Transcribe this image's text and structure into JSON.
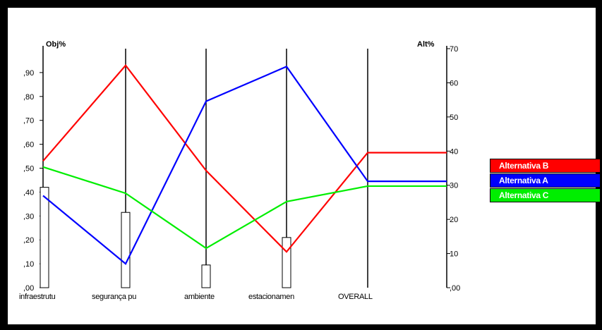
{
  "chart_data": {
    "type": "line",
    "title": "",
    "left_axis": {
      "label": "Obj%",
      "range": [
        0,
        1
      ],
      "ticks": [
        ",00",
        ",10",
        ",20",
        ",30",
        ",40",
        ",50",
        ",60",
        ",70",
        ",80",
        ",90"
      ]
    },
    "right_axis": {
      "label": "Alt%",
      "range": [
        0,
        70
      ],
      "ticks": [
        ",00",
        "10",
        "20",
        "30",
        "40",
        "50",
        "60",
        "70"
      ]
    },
    "categories": [
      "infraestrutu",
      "segurança pu",
      "ambiente",
      "estacionamen",
      "OVERALL"
    ],
    "bars": {
      "axis": "left",
      "values": [
        0.42,
        0.315,
        0.095,
        0.21
      ]
    },
    "series": [
      {
        "name": "Alternativa B",
        "color": "#ff0000",
        "axis": "left",
        "values": [
          0.53,
          0.93,
          0.49,
          0.15,
          0.565
        ]
      },
      {
        "name": "Alternativa A",
        "color": "#0000ff",
        "axis": "left",
        "values": [
          0.385,
          0.1,
          0.78,
          0.925,
          0.445
        ]
      },
      {
        "name": "Alternativa C",
        "color": "#00ee00",
        "axis": "left",
        "values": [
          0.505,
          0.395,
          0.165,
          0.36,
          0.425
        ]
      }
    ],
    "grid": false,
    "legend_position": "right"
  }
}
